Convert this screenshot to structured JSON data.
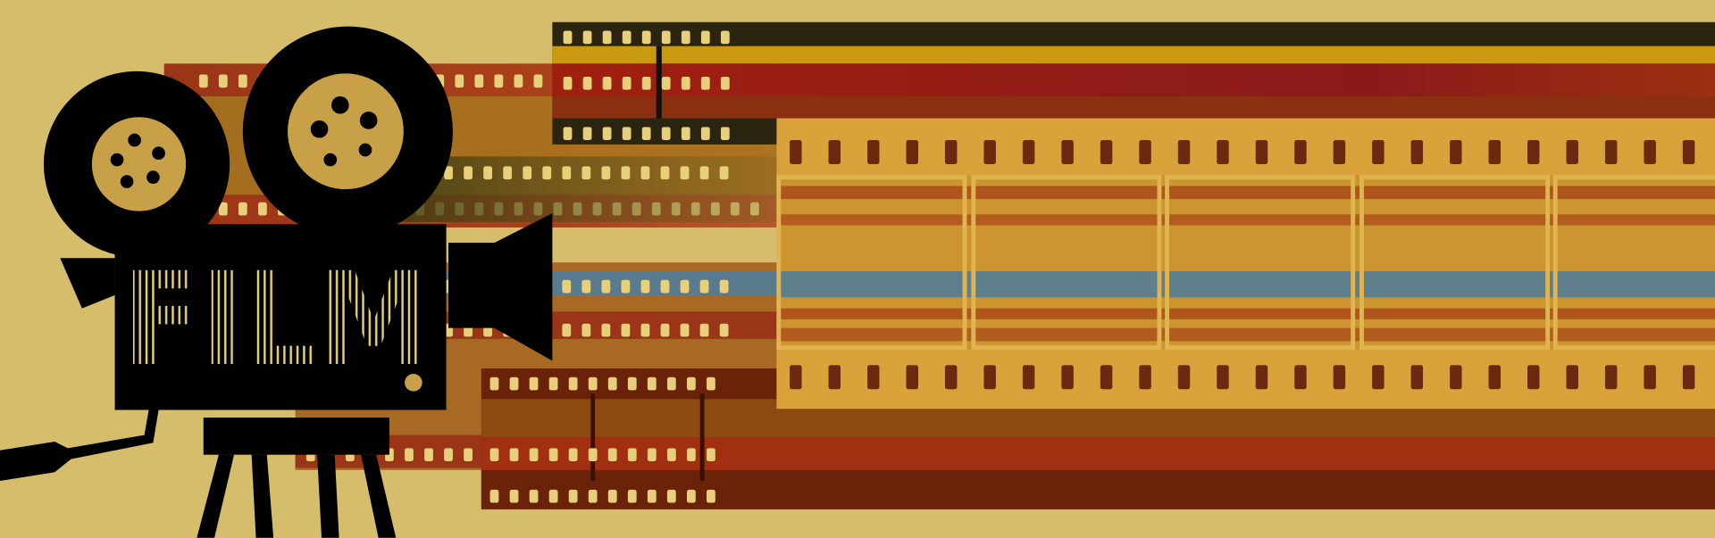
{
  "illustration": {
    "logo_text": "FILM",
    "colors": {
      "background": "#d5bd6c",
      "film_red": "#9a3517",
      "film_dark": "#5a1e0c",
      "film_orange": "#d9a23a",
      "film_gold": "#c99a10",
      "film_blue": "#5a7a8e",
      "camera": "#000000",
      "reel_inner": "#c8a048"
    },
    "icons": [
      "movie-camera-icon",
      "film-reel-icon",
      "film-strip-icon",
      "tripod-icon"
    ]
  }
}
